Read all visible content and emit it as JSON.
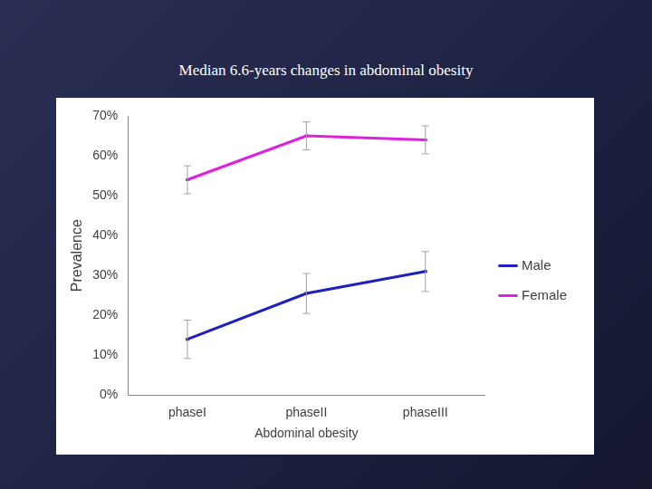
{
  "chart_data": {
    "type": "line",
    "title": "Median 6.6-years changes in abdominal obesity",
    "x_label": "Abdominal obesity",
    "y_label": "Prevalence",
    "categories": [
      "phaseI",
      "phaseII",
      "phaseIII"
    ],
    "series": [
      {
        "name": "Male",
        "color": "#2020c0",
        "values": [
          14,
          25.5,
          31
        ],
        "errors": [
          4.8,
          5,
          5
        ]
      },
      {
        "name": "Female",
        "color": "#e020e0",
        "values": [
          54,
          65,
          64
        ],
        "errors": [
          3.5,
          3.5,
          3.5
        ]
      }
    ],
    "ylim": [
      0,
      70
    ],
    "yticks": [
      {
        "value": 0,
        "label": "0%"
      },
      {
        "value": 10,
        "label": "10%"
      },
      {
        "value": 20,
        "label": "20%"
      },
      {
        "value": 30,
        "label": "30%"
      },
      {
        "value": 40,
        "label": "40%"
      },
      {
        "value": 50,
        "label": "50%"
      },
      {
        "value": 60,
        "label": "60%"
      },
      {
        "value": 70,
        "label": "70%"
      }
    ],
    "grid": false,
    "legend": "right"
  }
}
